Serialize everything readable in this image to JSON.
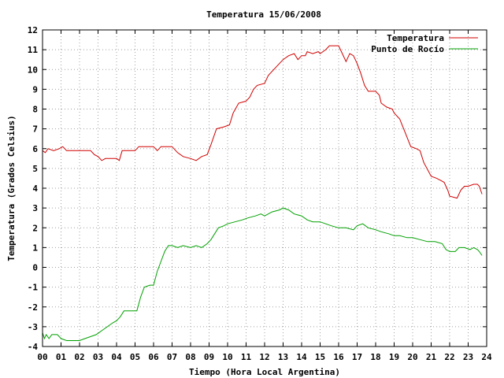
{
  "chart_data": {
    "type": "line",
    "title": "Temperatura 15/06/2008",
    "xlabel": "Tiempo (Hora Local Argentina)",
    "ylabel": "Temperatura (Grados Celsius)",
    "xlim": [
      0,
      24
    ],
    "ylim": [
      -4,
      12
    ],
    "x_ticks": [
      0,
      1,
      2,
      3,
      4,
      5,
      6,
      7,
      8,
      9,
      10,
      11,
      12,
      13,
      14,
      15,
      16,
      17,
      18,
      19,
      20,
      21,
      22,
      23,
      24
    ],
    "x_tick_labels": [
      "00",
      "01",
      "02",
      "03",
      "04",
      "05",
      "06",
      "07",
      "08",
      "09",
      "10",
      "11",
      "12",
      "13",
      "14",
      "15",
      "16",
      "17",
      "18",
      "19",
      "20",
      "21",
      "22",
      "23",
      "24"
    ],
    "y_ticks": [
      -4,
      -3,
      -2,
      -1,
      0,
      1,
      2,
      3,
      4,
      5,
      6,
      7,
      8,
      9,
      10,
      11,
      12
    ],
    "grid": true,
    "legend_position": "top-right",
    "series": [
      {
        "name": "Temperatura",
        "color": "#d00000",
        "points": [
          [
            0,
            5.9
          ],
          [
            0.15,
            5.8
          ],
          [
            0.3,
            6.0
          ],
          [
            0.6,
            5.9
          ],
          [
            0.9,
            6.0
          ],
          [
            1.1,
            6.1
          ],
          [
            1.3,
            5.9
          ],
          [
            2.0,
            5.9
          ],
          [
            2.6,
            5.9
          ],
          [
            2.8,
            5.7
          ],
          [
            3.0,
            5.6
          ],
          [
            3.2,
            5.4
          ],
          [
            3.4,
            5.5
          ],
          [
            4.0,
            5.5
          ],
          [
            4.15,
            5.4
          ],
          [
            4.3,
            5.9
          ],
          [
            5.0,
            5.9
          ],
          [
            5.2,
            6.1
          ],
          [
            6.0,
            6.1
          ],
          [
            6.2,
            5.9
          ],
          [
            6.4,
            6.1
          ],
          [
            7.0,
            6.1
          ],
          [
            7.3,
            5.8
          ],
          [
            7.6,
            5.6
          ],
          [
            8.0,
            5.5
          ],
          [
            8.3,
            5.4
          ],
          [
            8.6,
            5.6
          ],
          [
            8.9,
            5.7
          ],
          [
            9.1,
            6.2
          ],
          [
            9.4,
            7.0
          ],
          [
            9.8,
            7.1
          ],
          [
            10.1,
            7.2
          ],
          [
            10.3,
            7.8
          ],
          [
            10.6,
            8.3
          ],
          [
            11.0,
            8.4
          ],
          [
            11.2,
            8.6
          ],
          [
            11.4,
            9.0
          ],
          [
            11.6,
            9.2
          ],
          [
            12.0,
            9.3
          ],
          [
            12.2,
            9.7
          ],
          [
            12.6,
            10.1
          ],
          [
            12.8,
            10.3
          ],
          [
            13.0,
            10.5
          ],
          [
            13.3,
            10.7
          ],
          [
            13.6,
            10.8
          ],
          [
            13.8,
            10.5
          ],
          [
            14.0,
            10.7
          ],
          [
            14.2,
            10.7
          ],
          [
            14.3,
            10.9
          ],
          [
            14.6,
            10.8
          ],
          [
            14.9,
            10.9
          ],
          [
            15.0,
            10.8
          ],
          [
            15.3,
            11.0
          ],
          [
            15.5,
            11.2
          ],
          [
            16.0,
            11.2
          ],
          [
            16.2,
            10.8
          ],
          [
            16.4,
            10.4
          ],
          [
            16.6,
            10.8
          ],
          [
            16.8,
            10.7
          ],
          [
            17.0,
            10.3
          ],
          [
            17.2,
            9.8
          ],
          [
            17.4,
            9.2
          ],
          [
            17.6,
            8.9
          ],
          [
            18.0,
            8.9
          ],
          [
            18.2,
            8.7
          ],
          [
            18.3,
            8.3
          ],
          [
            18.6,
            8.1
          ],
          [
            18.9,
            8.0
          ],
          [
            19.0,
            7.8
          ],
          [
            19.3,
            7.5
          ],
          [
            19.6,
            6.8
          ],
          [
            19.9,
            6.1
          ],
          [
            20.2,
            6.0
          ],
          [
            20.4,
            5.9
          ],
          [
            20.6,
            5.3
          ],
          [
            21.0,
            4.6
          ],
          [
            21.3,
            4.5
          ],
          [
            21.5,
            4.4
          ],
          [
            21.7,
            4.3
          ],
          [
            21.9,
            3.9
          ],
          [
            22.0,
            3.6
          ],
          [
            22.4,
            3.5
          ],
          [
            22.6,
            3.9
          ],
          [
            22.8,
            4.1
          ],
          [
            23.0,
            4.1
          ],
          [
            23.3,
            4.2
          ],
          [
            23.5,
            4.2
          ],
          [
            23.6,
            4.1
          ],
          [
            23.75,
            3.7
          ]
        ]
      },
      {
        "name": "Punto de Rocío",
        "color": "#00a000",
        "points": [
          [
            0,
            -3.3
          ],
          [
            0.1,
            -3.6
          ],
          [
            0.2,
            -3.4
          ],
          [
            0.35,
            -3.6
          ],
          [
            0.5,
            -3.4
          ],
          [
            0.8,
            -3.4
          ],
          [
            1.0,
            -3.6
          ],
          [
            1.3,
            -3.7
          ],
          [
            2.0,
            -3.7
          ],
          [
            2.3,
            -3.6
          ],
          [
            2.6,
            -3.5
          ],
          [
            2.9,
            -3.4
          ],
          [
            3.2,
            -3.2
          ],
          [
            3.5,
            -3.0
          ],
          [
            3.8,
            -2.8
          ],
          [
            4.0,
            -2.7
          ],
          [
            4.2,
            -2.5
          ],
          [
            4.4,
            -2.2
          ],
          [
            4.8,
            -2.2
          ],
          [
            5.1,
            -2.2
          ],
          [
            5.3,
            -1.5
          ],
          [
            5.5,
            -1.0
          ],
          [
            5.8,
            -0.9
          ],
          [
            6.0,
            -0.9
          ],
          [
            6.2,
            -0.2
          ],
          [
            6.4,
            0.3
          ],
          [
            6.6,
            0.8
          ],
          [
            6.8,
            1.1
          ],
          [
            7.0,
            1.1
          ],
          [
            7.3,
            1.0
          ],
          [
            7.6,
            1.1
          ],
          [
            8.0,
            1.0
          ],
          [
            8.3,
            1.1
          ],
          [
            8.6,
            1.0
          ],
          [
            8.9,
            1.2
          ],
          [
            9.1,
            1.4
          ],
          [
            9.3,
            1.7
          ],
          [
            9.5,
            2.0
          ],
          [
            9.8,
            2.1
          ],
          [
            10.0,
            2.2
          ],
          [
            10.4,
            2.3
          ],
          [
            10.8,
            2.4
          ],
          [
            11.1,
            2.5
          ],
          [
            11.5,
            2.6
          ],
          [
            11.8,
            2.7
          ],
          [
            12.0,
            2.6
          ],
          [
            12.4,
            2.8
          ],
          [
            12.8,
            2.9
          ],
          [
            13.0,
            3.0
          ],
          [
            13.3,
            2.9
          ],
          [
            13.6,
            2.7
          ],
          [
            14.0,
            2.6
          ],
          [
            14.3,
            2.4
          ],
          [
            14.6,
            2.3
          ],
          [
            15.0,
            2.3
          ],
          [
            15.3,
            2.2
          ],
          [
            15.6,
            2.1
          ],
          [
            16.0,
            2.0
          ],
          [
            16.4,
            2.0
          ],
          [
            16.8,
            1.9
          ],
          [
            17.0,
            2.1
          ],
          [
            17.3,
            2.2
          ],
          [
            17.6,
            2.0
          ],
          [
            18.0,
            1.9
          ],
          [
            18.3,
            1.8
          ],
          [
            18.7,
            1.7
          ],
          [
            19.0,
            1.6
          ],
          [
            19.3,
            1.6
          ],
          [
            19.7,
            1.5
          ],
          [
            20.0,
            1.5
          ],
          [
            20.4,
            1.4
          ],
          [
            20.8,
            1.3
          ],
          [
            21.2,
            1.3
          ],
          [
            21.6,
            1.2
          ],
          [
            21.8,
            0.9
          ],
          [
            22.0,
            0.8
          ],
          [
            22.3,
            0.8
          ],
          [
            22.5,
            1.0
          ],
          [
            22.8,
            1.0
          ],
          [
            23.1,
            0.9
          ],
          [
            23.3,
            1.0
          ],
          [
            23.5,
            0.9
          ],
          [
            23.6,
            0.8
          ],
          [
            23.75,
            0.6
          ]
        ]
      }
    ]
  }
}
